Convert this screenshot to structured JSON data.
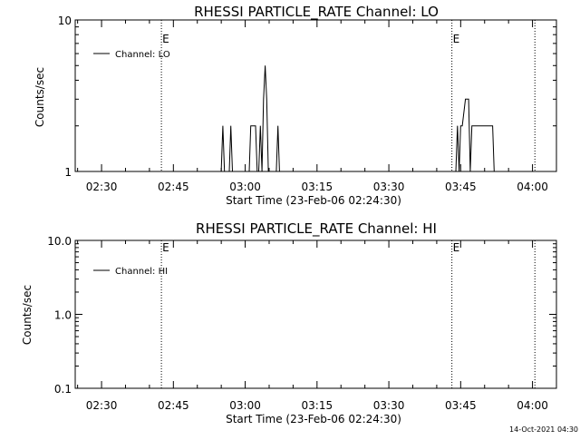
{
  "chart_data": [
    {
      "type": "line",
      "title": "RHESSI PARTICLE_RATE Channel: LO",
      "xlabel": "Start Time (23-Feb-06 02:24:30)",
      "ylabel": "Counts/sec",
      "yscale": "log",
      "ylim": [
        1,
        10
      ],
      "y_ticks": [
        1,
        10
      ],
      "y_tick_labels": [
        "1",
        "10"
      ],
      "x_time_range": [
        "02:24:30",
        "04:05:00"
      ],
      "x_ticks": [
        "02:30",
        "02:45",
        "03:00",
        "03:15",
        "03:30",
        "03:45",
        "04:00"
      ],
      "event_markers": [
        {
          "time": "02:42:30",
          "label": "E"
        },
        {
          "time": "03:43:10",
          "label": "E"
        },
        {
          "time": "04:00:30",
          "label": ""
        }
      ],
      "legend": {
        "placement": "top-left",
        "entries": [
          "Channel: LO"
        ]
      },
      "series": [
        {
          "name": "Channel: LO",
          "points": [
            [
              "02:55:00",
              1
            ],
            [
              "02:55:20",
              2
            ],
            [
              "02:55:40",
              1
            ],
            [
              "02:56:40",
              1
            ],
            [
              "02:57:00",
              2
            ],
            [
              "02:57:20",
              1
            ],
            [
              "03:00:50",
              1
            ],
            [
              "03:01:10",
              2
            ],
            [
              "03:02:10",
              2
            ],
            [
              "03:02:30",
              1
            ],
            [
              "03:02:50",
              1
            ],
            [
              "03:03:10",
              2
            ],
            [
              "03:03:30",
              1
            ],
            [
              "03:03:50",
              3
            ],
            [
              "03:04:10",
              5
            ],
            [
              "03:04:30",
              3
            ],
            [
              "03:04:50",
              1
            ],
            [
              "03:06:30",
              1
            ],
            [
              "03:06:50",
              2
            ],
            [
              "03:07:10",
              1
            ],
            [
              "03:44:00",
              1
            ],
            [
              "03:44:20",
              2
            ],
            [
              "03:44:40",
              1
            ],
            [
              "03:45:00",
              2
            ],
            [
              "03:45:20",
              2
            ],
            [
              "03:46:00",
              3
            ],
            [
              "03:46:40",
              3
            ],
            [
              "03:47:00",
              1
            ],
            [
              "03:47:20",
              2
            ],
            [
              "03:51:40",
              2
            ],
            [
              "03:52:00",
              1
            ]
          ]
        }
      ]
    },
    {
      "type": "line",
      "title": "RHESSI PARTICLE_RATE Channel: HI",
      "xlabel": "Start Time (23-Feb-06 02:24:30)",
      "ylabel": "Counts/sec",
      "yscale": "log",
      "ylim": [
        0.1,
        10
      ],
      "y_ticks": [
        0.1,
        1,
        10
      ],
      "y_tick_labels": [
        "0.1",
        "1.0",
        "10.0"
      ],
      "x_time_range": [
        "02:24:30",
        "04:05:00"
      ],
      "x_ticks": [
        "02:30",
        "02:45",
        "03:00",
        "03:15",
        "03:30",
        "03:45",
        "04:00"
      ],
      "event_markers": [
        {
          "time": "02:42:30",
          "label": "E"
        },
        {
          "time": "03:43:10",
          "label": "E"
        },
        {
          "time": "04:00:30",
          "label": ""
        }
      ],
      "legend": {
        "placement": "top-left",
        "entries": [
          "Channel: HI"
        ]
      },
      "series": [
        {
          "name": "Channel: HI",
          "points": []
        }
      ]
    }
  ],
  "footer": {
    "timestamp": "14-Oct-2021 04:30"
  }
}
